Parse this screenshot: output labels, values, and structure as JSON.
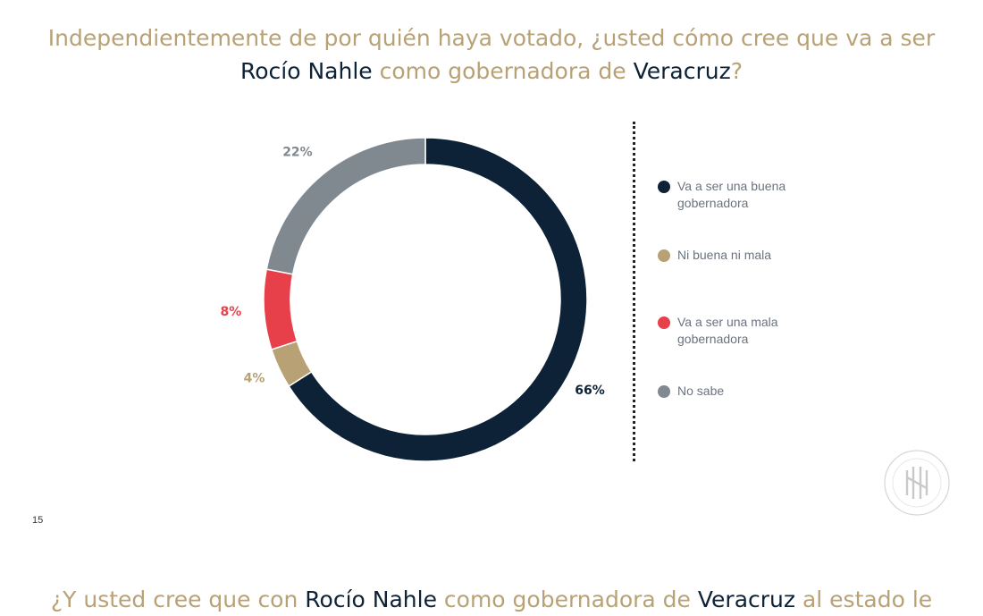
{
  "title": {
    "line1": "Independientemente de por quién haya votado, ¿usted cómo cree que va a ser",
    "line2_name": "Rocío Nahle",
    "line2_mid": " como gobernadora de ",
    "line2_state": "Veracruz",
    "line2_end": "?"
  },
  "next_title": {
    "part1": "¿Y usted cree que con ",
    "name": "Rocío Nahle",
    "part2": " como gobernadora de ",
    "state": "Veracruz",
    "part3": " al estado le"
  },
  "page_number": "15",
  "colors": {
    "accent_gold": "#b8a275",
    "navy": "#0d2237"
  },
  "chart_data": {
    "type": "pie",
    "variant": "donut",
    "legend_position": "right",
    "series": [
      {
        "name": "Va a ser una buena gobernadora",
        "value": 66,
        "label": "66%",
        "color": "#0d2237",
        "label_color": "#0d2237"
      },
      {
        "name": "Ni buena ni mala",
        "value": 4,
        "label": "4%",
        "color": "#b8a275",
        "label_color": "#b8a275"
      },
      {
        "name": "Va a ser una mala gobernadora",
        "value": 8,
        "label": "8%",
        "color": "#e8404a",
        "label_color": "#e8404a"
      },
      {
        "name": "No sabe",
        "value": 22,
        "label": "22%",
        "color": "#808890",
        "label_color": "#808890"
      }
    ]
  }
}
